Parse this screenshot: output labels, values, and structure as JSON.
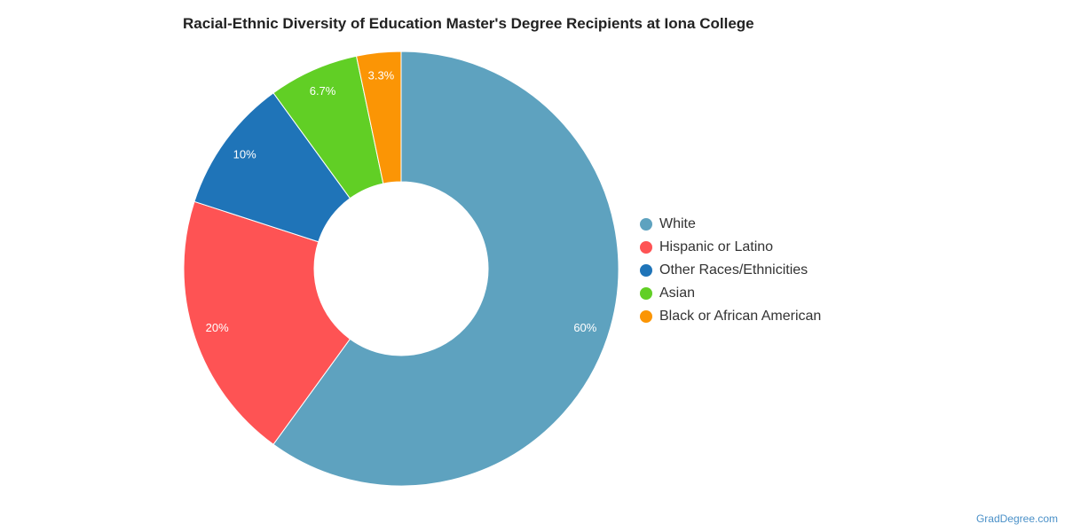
{
  "title": "Racial-Ethnic Diversity of Education Master's Degree Recipients at Iona College",
  "source": "GradDegree.com",
  "chart_data": {
    "type": "pie",
    "variant": "donut",
    "title": "Racial-Ethnic Diversity of Education Master's Degree Recipients at Iona College",
    "legend_position": "right",
    "slices": [
      {
        "label": "White",
        "value": 60,
        "display": "60%",
        "color": "#5ea2bf"
      },
      {
        "label": "Hispanic or Latino",
        "value": 20,
        "display": "20%",
        "color": "#fe5354"
      },
      {
        "label": "Other Races/Ethnicities",
        "value": 10,
        "display": "10%",
        "color": "#1f74b8"
      },
      {
        "label": "Asian",
        "value": 6.7,
        "display": "6.7%",
        "color": "#61cf25"
      },
      {
        "label": "Black or African American",
        "value": 3.3,
        "display": "3.3%",
        "color": "#fb9505"
      }
    ]
  }
}
